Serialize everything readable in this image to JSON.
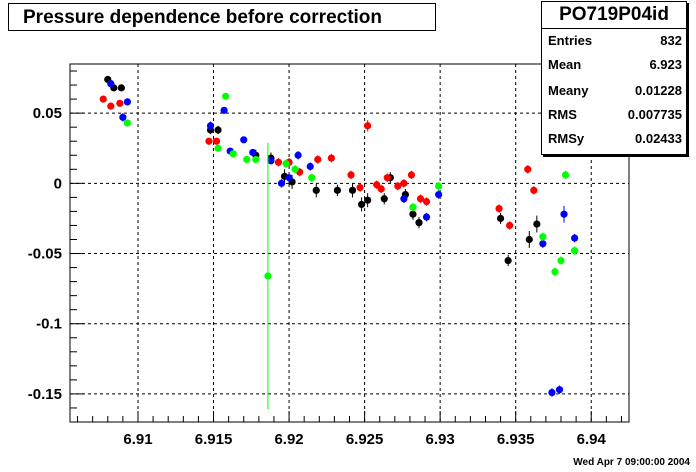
{
  "chart_data": {
    "type": "scatter",
    "title": "Pressure dependence before correction",
    "xlabel": "",
    "ylabel": "",
    "xlim": [
      6.9055,
      6.9425
    ],
    "ylim": [
      -0.17,
      0.085
    ],
    "grid": true,
    "xticks": [
      "6.91",
      "6.915",
      "6.92",
      "6.925",
      "6.93",
      "6.935",
      "6.94"
    ],
    "xtick_values": [
      6.91,
      6.915,
      6.92,
      6.925,
      6.93,
      6.935,
      6.94
    ],
    "yticks": [
      "0.05",
      "0",
      "-0.05",
      "-0.1",
      "-0.15"
    ],
    "ytick_values": [
      0.05,
      0,
      -0.05,
      -0.1,
      -0.15
    ],
    "stats": {
      "name": "PO719P04id",
      "rows": [
        {
          "label": "Entries",
          "value": "832"
        },
        {
          "label": "Mean",
          "value": "6.923"
        },
        {
          "label": "Meany",
          "value": "0.01228"
        },
        {
          "label": "RMS",
          "value": "0.007735"
        },
        {
          "label": "RMSy",
          "value": "0.02433"
        }
      ]
    },
    "series": [
      {
        "color": "#000000",
        "points": [
          [
            6.908,
            0.074,
            0.002
          ],
          [
            6.9084,
            0.068,
            0.002
          ],
          [
            6.9089,
            0.068,
            0.002
          ],
          [
            6.9148,
            0.038,
            0.003
          ],
          [
            6.9153,
            0.038,
            0.003
          ],
          [
            6.9178,
            0.02,
            0.004
          ],
          [
            6.9188,
            0.018,
            0.004
          ],
          [
            6.9197,
            0.005,
            0.005
          ],
          [
            6.9202,
            0.001,
            0.005
          ],
          [
            6.9218,
            -0.005,
            0.005
          ],
          [
            6.9232,
            -0.005,
            0.004
          ],
          [
            6.9242,
            -0.005,
            0.005
          ],
          [
            6.9248,
            -0.015,
            0.005
          ],
          [
            6.9252,
            -0.012,
            0.005
          ],
          [
            6.9263,
            -0.011,
            0.004
          ],
          [
            6.9267,
            0.004,
            0.004
          ],
          [
            6.9277,
            -0.008,
            0.004
          ],
          [
            6.9282,
            -0.022,
            0.004
          ],
          [
            6.9286,
            -0.028,
            0.004
          ],
          [
            6.934,
            -0.025,
            0.004
          ],
          [
            6.9345,
            -0.055,
            0.004
          ],
          [
            6.9359,
            -0.04,
            0.006
          ],
          [
            6.9364,
            -0.029,
            0.006
          ]
        ]
      },
      {
        "color": "#ff0000",
        "points": [
          [
            6.9077,
            0.06,
            0.002
          ],
          [
            6.9082,
            0.055,
            0.002
          ],
          [
            6.9088,
            0.057,
            0.002
          ],
          [
            6.9147,
            0.03,
            0.002
          ],
          [
            6.9152,
            0.03,
            0.002
          ],
          [
            6.9193,
            0.015,
            0.003
          ],
          [
            6.92,
            0.015,
            0.003
          ],
          [
            6.9207,
            0.008,
            0.003
          ],
          [
            6.9219,
            0.017,
            0.003
          ],
          [
            6.9228,
            0.018,
            0.003
          ],
          [
            6.9241,
            0.006,
            0.003
          ],
          [
            6.9247,
            -0.003,
            0.003
          ],
          [
            6.9252,
            0.041,
            0.004
          ],
          [
            6.9258,
            -0.001,
            0.003
          ],
          [
            6.9261,
            -0.004,
            0.003
          ],
          [
            6.9265,
            0.004,
            0.003
          ],
          [
            6.9272,
            -0.002,
            0.003
          ],
          [
            6.9276,
            0.0,
            0.003
          ],
          [
            6.9281,
            0.006,
            0.003
          ],
          [
            6.9287,
            -0.011,
            0.003
          ],
          [
            6.9291,
            -0.013,
            0.003
          ],
          [
            6.9339,
            -0.018,
            0.003
          ],
          [
            6.9346,
            -0.03,
            0.003
          ],
          [
            6.9358,
            0.01,
            0.003
          ],
          [
            6.9362,
            -0.005,
            0.003
          ]
        ]
      },
      {
        "color": "#0000ff",
        "points": [
          [
            6.9082,
            0.071,
            0.002
          ],
          [
            6.909,
            0.047,
            0.003
          ],
          [
            6.9093,
            0.058,
            0.002
          ],
          [
            6.9148,
            0.041,
            0.003
          ],
          [
            6.9157,
            0.052,
            0.002
          ],
          [
            6.9161,
            0.023,
            0.002
          ],
          [
            6.917,
            0.031,
            0.002
          ],
          [
            6.9176,
            0.022,
            0.002
          ],
          [
            6.9188,
            0.016,
            0.002
          ],
          [
            6.9195,
            0.0,
            0.003
          ],
          [
            6.92,
            0.004,
            0.003
          ],
          [
            6.9206,
            0.02,
            0.003
          ],
          [
            6.9214,
            0.012,
            0.003
          ],
          [
            6.9276,
            -0.011,
            0.003
          ],
          [
            6.9291,
            -0.024,
            0.003
          ],
          [
            6.9299,
            -0.008,
            0.003
          ],
          [
            6.9368,
            -0.043,
            0.003
          ],
          [
            6.9374,
            -0.149,
            0.003
          ],
          [
            6.9379,
            -0.147,
            0.003
          ],
          [
            6.9382,
            -0.022,
            0.006
          ],
          [
            6.9389,
            -0.039,
            0.003
          ]
        ]
      },
      {
        "color": "#00ff00",
        "points": [
          [
            6.9093,
            0.043,
            0.002
          ],
          [
            6.9153,
            0.025,
            0.002
          ],
          [
            6.9158,
            0.062,
            0.002
          ],
          [
            6.9163,
            0.021,
            0.002
          ],
          [
            6.9172,
            0.017,
            0.002
          ],
          [
            6.9178,
            0.017,
            0.002
          ],
          [
            6.9186,
            -0.066,
            0.095
          ],
          [
            6.9198,
            0.014,
            0.003
          ],
          [
            6.9204,
            0.01,
            0.003
          ],
          [
            6.9215,
            0.004,
            0.003
          ],
          [
            6.9282,
            -0.017,
            0.003
          ],
          [
            6.9299,
            -0.002,
            0.003
          ],
          [
            6.9368,
            -0.038,
            0.003
          ],
          [
            6.9376,
            -0.063,
            0.003
          ],
          [
            6.938,
            -0.055,
            0.003
          ],
          [
            6.9383,
            0.006,
            0.003
          ],
          [
            6.9389,
            -0.048,
            0.003
          ]
        ]
      }
    ]
  },
  "footer": {
    "date": "Wed Apr  7 09:00:00 2004"
  }
}
